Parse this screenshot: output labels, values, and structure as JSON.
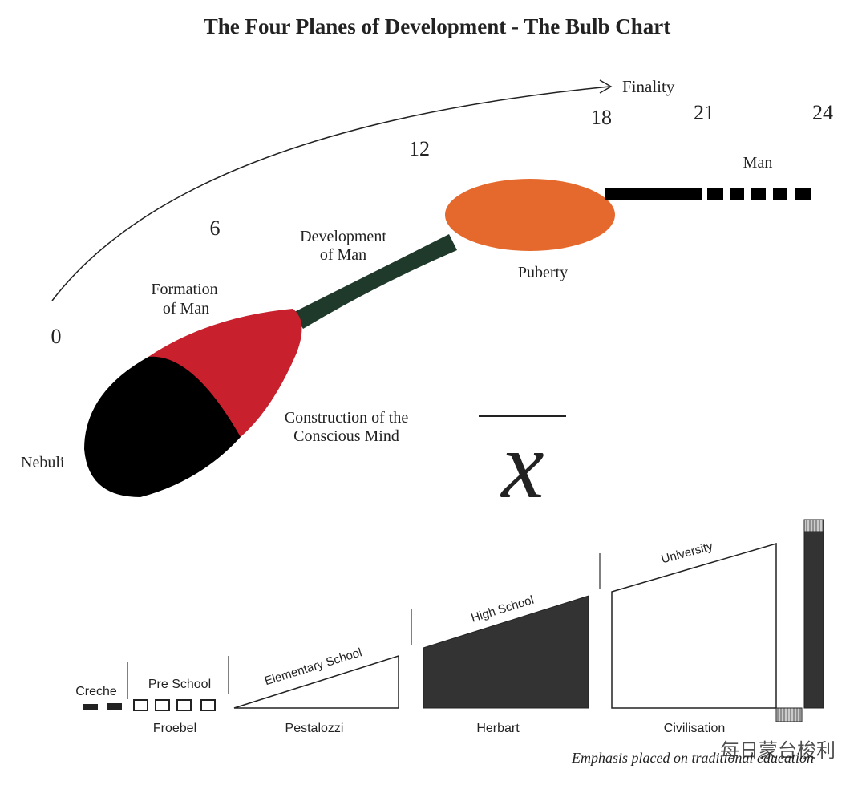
{
  "header": {
    "title": "The Four Planes of Development - The Bulb Chart"
  },
  "timeline": {
    "end_label": "Finality",
    "ages": [
      0,
      6,
      12,
      18,
      21,
      24
    ]
  },
  "bulb": {
    "labels": {
      "nebuli": "Nebuli",
      "formation": [
        "Formation",
        "of Man"
      ],
      "construction": [
        "Construction of the",
        "Conscious Mind"
      ],
      "development": [
        "Development",
        "of Man"
      ],
      "puberty": "Puberty",
      "man": "Man"
    },
    "symbol": "x"
  },
  "education": {
    "stages": [
      {
        "name": "Creche"
      },
      {
        "name": "Pre School",
        "educator": "Froebel"
      },
      {
        "name": "Elementary School",
        "educator": "Pestalozzi"
      },
      {
        "name": "High School",
        "educator": "Herbart"
      },
      {
        "name": "University",
        "educator": "Civilisation"
      }
    ],
    "caption": "Emphasis placed on traditional education",
    "watermark": "每日蒙台梭利"
  }
}
